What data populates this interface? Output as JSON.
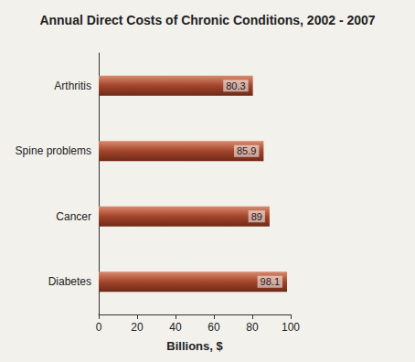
{
  "chart_data": {
    "type": "bar",
    "title": "Annual Direct Costs of Chronic Conditions, 2002 - 2007",
    "categories": [
      "Arthritis",
      "Spine problems",
      "Cancer",
      "Diabetes"
    ],
    "values": [
      80.3,
      85.9,
      89,
      98.1
    ],
    "color": "#a3452b",
    "orientation": "horizontal",
    "xlabel": "Billions, $",
    "xlim": [
      0,
      100
    ],
    "xticks": [
      0,
      20,
      40,
      60,
      80,
      100
    ],
    "grid": false,
    "data_labels": true
  }
}
